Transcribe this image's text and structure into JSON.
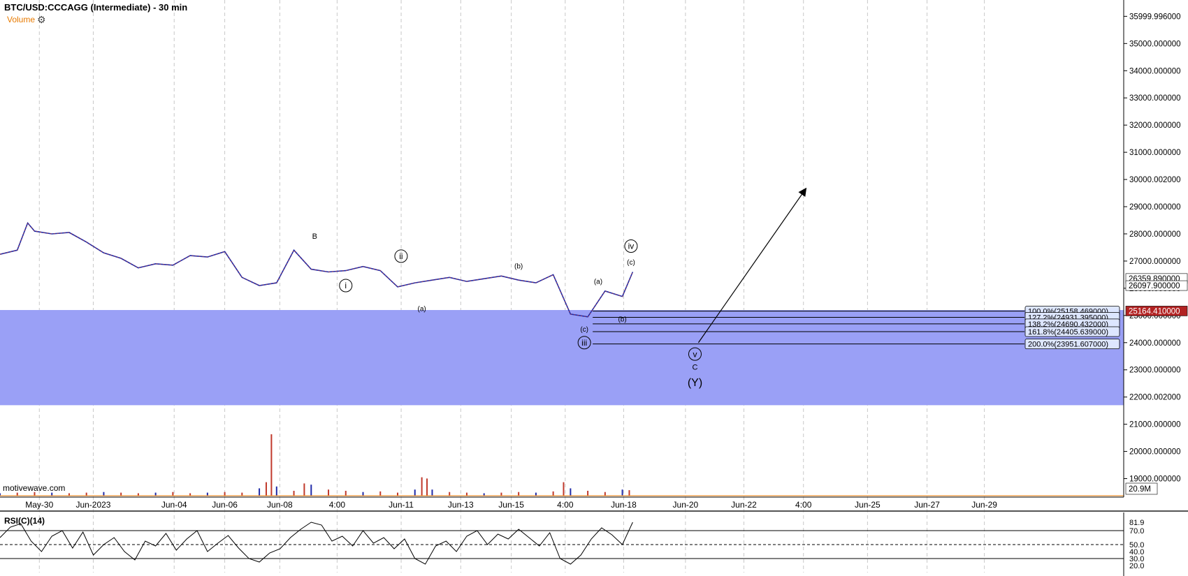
{
  "header": {
    "title": "BTC/USD:CCCAGG (Intermediate) - 30 min",
    "volume_label": "Volume",
    "gear_icon": "gear-icon"
  },
  "watermark": "motivewave.com",
  "rsi_label": "RSI(C)(14)",
  "colors": {
    "zone": "#9aa0f6",
    "up_candle": "#1f2aa8",
    "down_candle": "#c0392b",
    "current_price_bg": "#b22222",
    "fib_label_first": "#c8f0b8",
    "fib_label": "#dde6ff",
    "grid": "#c8c8c8"
  },
  "chart_data": {
    "type": "line",
    "title": "BTC/USD:CCCAGG (Intermediate) - 30 min",
    "price_axis": {
      "ticks": [
        "35999.996000",
        "35000.000000",
        "34000.000000",
        "33000.000000",
        "32000.000000",
        "31000.000000",
        "30000.002000",
        "29000.000000",
        "28000.000000",
        "27000.000000",
        "26000.000000",
        "25000.000000",
        "24000.000000",
        "23000.000000",
        "22000.002000",
        "21000.000000",
        "20000.000000",
        "19000.000000"
      ],
      "ylim": [
        18500,
        36600
      ]
    },
    "x_axis": {
      "ticks": [
        "May-30",
        "Jun-2023",
        "Jun-04",
        "Jun-06",
        "Jun-08",
        "4:00",
        "Jun-11",
        "Jun-13",
        "Jun-15",
        "4:00",
        "Jun-18",
        "Jun-20",
        "Jun-22",
        "4:00",
        "Jun-25",
        "Jun-27",
        "Jun-29"
      ],
      "xlim": [
        0,
        32.5
      ]
    },
    "price_series": {
      "name": "BTC/USD",
      "x": [
        0,
        0.5,
        0.8,
        1.0,
        1.5,
        2.0,
        2.5,
        3.0,
        3.5,
        4.0,
        4.5,
        5.0,
        5.5,
        6.0,
        6.5,
        7.0,
        7.5,
        8.0,
        8.5,
        9.0,
        9.5,
        10.0,
        10.5,
        11.0,
        11.5,
        12.0,
        12.5,
        13.0,
        13.5,
        14.0,
        14.5,
        15.0,
        15.5,
        16.0,
        16.5,
        17.0,
        17.5,
        18.0,
        18.3
      ],
      "y": [
        27250,
        27400,
        28400,
        28100,
        28000,
        28050,
        27700,
        27300,
        27100,
        26750,
        26900,
        26850,
        27200,
        27150,
        27350,
        26400,
        26100,
        26200,
        27400,
        26700,
        26600,
        26650,
        26800,
        26650,
        26050,
        26200,
        26300,
        26400,
        26250,
        26350,
        26450,
        26300,
        26200,
        26500,
        25050,
        24950,
        25900,
        25700,
        26600
      ]
    },
    "support_zone": {
      "from": 21700,
      "to": 25200
    },
    "current_price_labels": [
      "26359.890000",
      "26097.900000",
      "25164.410000"
    ],
    "fib_levels": [
      {
        "label": "100.0%(25158.469000)",
        "value": 25158.469
      },
      {
        "label": "127.2%(24931.395000)",
        "value": 24931.395
      },
      {
        "label": "138.2%(24690.432000)",
        "value": 24690.432
      },
      {
        "label": "161.8%(24405.639000)",
        "value": 24405.639
      },
      {
        "label": "200.0%(23951.607000)",
        "value": 23951.607
      }
    ],
    "wave_labels": [
      {
        "text": "B",
        "x": 9.1,
        "y": 27920,
        "circled": false,
        "size": 11
      },
      {
        "text": "i",
        "x": 10.0,
        "y": 26100,
        "circled": true,
        "size": 12
      },
      {
        "text": "ii",
        "x": 11.6,
        "y": 27180,
        "circled": true,
        "size": 12
      },
      {
        "text": "(a)",
        "x": 12.2,
        "y": 25250,
        "circled": false,
        "size": 10
      },
      {
        "text": "(b)",
        "x": 15.0,
        "y": 26820,
        "circled": false,
        "size": 10
      },
      {
        "text": "(a)",
        "x": 17.3,
        "y": 26250,
        "circled": false,
        "size": 10
      },
      {
        "text": "(b)",
        "x": 18.0,
        "y": 24870,
        "circled": false,
        "size": 10
      },
      {
        "text": "(c)",
        "x": 16.9,
        "y": 24500,
        "circled": false,
        "size": 10
      },
      {
        "text": "iii",
        "x": 16.9,
        "y": 24000,
        "circled": true,
        "size": 12
      },
      {
        "text": "iv",
        "x": 18.25,
        "y": 27550,
        "circled": true,
        "size": 12
      },
      {
        "text": "(c)",
        "x": 18.25,
        "y": 26960,
        "circled": false,
        "size": 10
      },
      {
        "text": "v",
        "x": 20.1,
        "y": 23580,
        "circled": true,
        "size": 12
      },
      {
        "text": "C",
        "x": 20.1,
        "y": 23100,
        "circled": false,
        "size": 11
      },
      {
        "text": "(Y)",
        "x": 20.1,
        "y": 22550,
        "circled": false,
        "size": 16
      }
    ],
    "projection_arrow": {
      "from": {
        "x": 20.2,
        "y": 24000
      },
      "to": {
        "x": 23.3,
        "y": 29650
      }
    },
    "volume": {
      "label": "20.9M",
      "series": [
        {
          "x": 0,
          "y": 0.04
        },
        {
          "x": 0.5,
          "y": 0.05
        },
        {
          "x": 1.0,
          "y": 0.06
        },
        {
          "x": 1.5,
          "y": 0.05
        },
        {
          "x": 2.0,
          "y": 0.04
        },
        {
          "x": 2.5,
          "y": 0.05
        },
        {
          "x": 3.0,
          "y": 0.06
        },
        {
          "x": 3.5,
          "y": 0.05
        },
        {
          "x": 4.0,
          "y": 0.04
        },
        {
          "x": 4.5,
          "y": 0.05
        },
        {
          "x": 5.0,
          "y": 0.06
        },
        {
          "x": 5.5,
          "y": 0.04
        },
        {
          "x": 6.0,
          "y": 0.05
        },
        {
          "x": 6.5,
          "y": 0.06
        },
        {
          "x": 7.0,
          "y": 0.05
        },
        {
          "x": 7.5,
          "y": 0.12
        },
        {
          "x": 7.7,
          "y": 0.22
        },
        {
          "x": 7.85,
          "y": 1.0
        },
        {
          "x": 8.0,
          "y": 0.15
        },
        {
          "x": 8.5,
          "y": 0.08
        },
        {
          "x": 8.8,
          "y": 0.2
        },
        {
          "x": 9.0,
          "y": 0.18
        },
        {
          "x": 9.5,
          "y": 0.1
        },
        {
          "x": 10.0,
          "y": 0.08
        },
        {
          "x": 10.5,
          "y": 0.06
        },
        {
          "x": 11.0,
          "y": 0.07
        },
        {
          "x": 11.5,
          "y": 0.05
        },
        {
          "x": 12.0,
          "y": 0.1
        },
        {
          "x": 12.2,
          "y": 0.3
        },
        {
          "x": 12.35,
          "y": 0.28
        },
        {
          "x": 12.5,
          "y": 0.1
        },
        {
          "x": 13.0,
          "y": 0.06
        },
        {
          "x": 13.5,
          "y": 0.05
        },
        {
          "x": 14.0,
          "y": 0.04
        },
        {
          "x": 14.5,
          "y": 0.05
        },
        {
          "x": 15.0,
          "y": 0.06
        },
        {
          "x": 15.5,
          "y": 0.05
        },
        {
          "x": 16.0,
          "y": 0.07
        },
        {
          "x": 16.3,
          "y": 0.22
        },
        {
          "x": 16.5,
          "y": 0.12
        },
        {
          "x": 17.0,
          "y": 0.08
        },
        {
          "x": 17.5,
          "y": 0.06
        },
        {
          "x": 18.0,
          "y": 0.1
        },
        {
          "x": 18.2,
          "y": 0.09
        }
      ]
    },
    "rsi": {
      "ticks": [
        "81.9",
        "70.0",
        "50.0",
        "40.0",
        "30.0",
        "20.0"
      ],
      "levels": [
        70,
        50,
        30
      ],
      "ylim": [
        15,
        90
      ],
      "x": [
        0,
        0.3,
        0.6,
        0.9,
        1.2,
        1.5,
        1.8,
        2.1,
        2.4,
        2.7,
        3.0,
        3.3,
        3.6,
        3.9,
        4.2,
        4.5,
        4.8,
        5.1,
        5.4,
        5.7,
        6.0,
        6.3,
        6.6,
        6.9,
        7.2,
        7.5,
        7.8,
        8.1,
        8.4,
        8.7,
        9.0,
        9.3,
        9.6,
        9.9,
        10.2,
        10.5,
        10.8,
        11.1,
        11.4,
        11.7,
        12.0,
        12.3,
        12.6,
        12.9,
        13.2,
        13.5,
        13.8,
        14.1,
        14.4,
        14.7,
        15.0,
        15.3,
        15.6,
        15.9,
        16.2,
        16.5,
        16.8,
        17.1,
        17.4,
        17.7,
        18.0,
        18.3
      ],
      "y": [
        60,
        75,
        80,
        55,
        40,
        62,
        70,
        45,
        68,
        35,
        50,
        60,
        40,
        28,
        55,
        48,
        66,
        42,
        58,
        70,
        40,
        52,
        63,
        45,
        30,
        25,
        38,
        44,
        60,
        72,
        82,
        78,
        55,
        62,
        48,
        70,
        52,
        60,
        44,
        58,
        30,
        22,
        48,
        55,
        40,
        62,
        70,
        50,
        65,
        58,
        72,
        60,
        48,
        67,
        30,
        22,
        35,
        58,
        74,
        64,
        50,
        82
      ]
    }
  }
}
